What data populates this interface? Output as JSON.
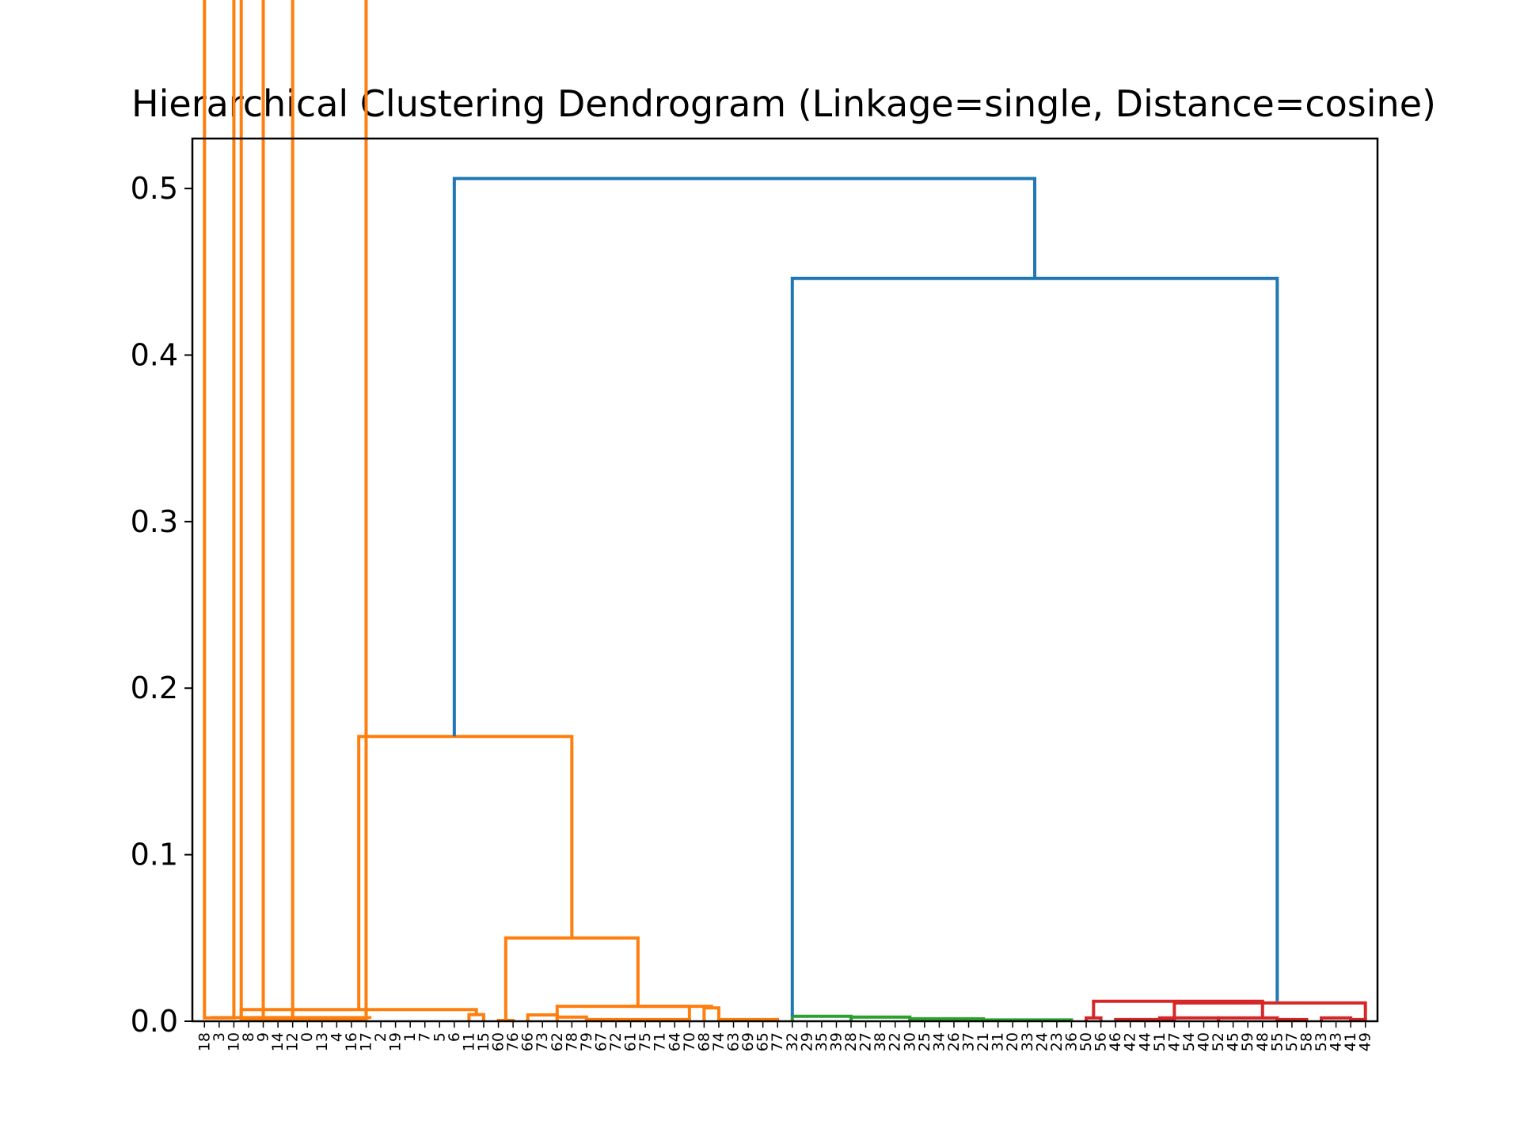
{
  "chart_data": {
    "type": "dendrogram",
    "title": "Hierarchical Clustering Dendrogram (Linkage=single, Distance=cosine)",
    "xlabel": "",
    "ylabel": "",
    "ylim": [
      0,
      0.53
    ],
    "yticks": [
      "0.0",
      "0.1",
      "0.2",
      "0.3",
      "0.4",
      "0.5"
    ],
    "ytick_values": [
      0,
      0.1,
      0.2,
      0.3,
      0.4,
      0.5
    ],
    "grid": false,
    "leaves": [
      "18",
      "3",
      "10",
      "8",
      "9",
      "14",
      "12",
      "0",
      "13",
      "4",
      "16",
      "17",
      "2",
      "19",
      "1",
      "7",
      "5",
      "6",
      "11",
      "15",
      "60",
      "76",
      "66",
      "73",
      "62",
      "78",
      "79",
      "67",
      "72",
      "61",
      "75",
      "71",
      "64",
      "70",
      "68",
      "74",
      "63",
      "69",
      "65",
      "77",
      "32",
      "29",
      "35",
      "39",
      "28",
      "27",
      "38",
      "22",
      "30",
      "25",
      "34",
      "26",
      "37",
      "21",
      "31",
      "20",
      "33",
      "24",
      "23",
      "36",
      "50",
      "56",
      "46",
      "42",
      "44",
      "51",
      "47",
      "54",
      "40",
      "52",
      "45",
      "59",
      "48",
      "55",
      "57",
      "58",
      "53",
      "43",
      "41",
      "49"
    ],
    "colors": {
      "above_threshold": "#1f77b4",
      "cluster1": "#ff7f0e",
      "cluster2": "#2ca02c",
      "cluster3": "#d62728"
    },
    "merges": [
      {
        "color": "#ff7f0e",
        "left": [
          0,
          1
        ],
        "right": [
          2,
          3
        ],
        "height": 0.002
      },
      {
        "color": "#ff7f0e",
        "left": [
          4,
          5
        ],
        "right": [
          6,
          17
        ],
        "height": 0.001
      },
      {
        "color": "#ff7f0e",
        "left": [
          2.5,
          3
        ],
        "right": [
          11,
          18
        ],
        "height": 0.0015
      },
      {
        "color": "#ff7f0e",
        "left": [
          0.5,
          0.002
        ],
        "right": [
          11.25,
          0.0015
        ],
        "height": 0.0022
      },
      {
        "color": "#ff7f0e",
        "left": [
          18,
          0
        ],
        "right": [
          19,
          0
        ],
        "height": 0.004
      },
      {
        "color": "#ff7f0e",
        "left": [
          2.5,
          0.0022
        ],
        "right": [
          18.5,
          0.004
        ],
        "height": 0.007
      },
      {
        "color": "#ff7f0e",
        "left": [
          20,
          0
        ],
        "right": [
          21,
          0
        ],
        "height": 0.0005
      },
      {
        "color": "#ff7f0e",
        "left": [
          22,
          0
        ],
        "right": [
          24,
          0
        ],
        "height": 0.0038
      },
      {
        "color": "#ff7f0e",
        "left": [
          24,
          0
        ],
        "right": [
          26,
          0
        ],
        "height": 0.0025
      },
      {
        "color": "#ff7f0e",
        "left": [
          26,
          0
        ],
        "right": [
          33,
          0
        ],
        "height": 0.001
      },
      {
        "color": "#ff7f0e",
        "left": [
          24,
          0.0025
        ],
        "right": [
          33,
          0
        ],
        "height": 0.009
      },
      {
        "color": "#ff7f0e",
        "left": [
          34,
          0
        ],
        "right": [
          35,
          0
        ],
        "height": 0.008
      },
      {
        "color": "#ff7f0e",
        "left": [
          35,
          0
        ],
        "right": [
          39,
          0
        ],
        "height": 0.001
      },
      {
        "color": "#ff7f0e",
        "left": [
          29,
          0.009
        ],
        "right": [
          34.5,
          0.008
        ],
        "height": 0.009
      },
      {
        "color": "#ff7f0e",
        "left": [
          20.5,
          0.0005
        ],
        "right": [
          29.5,
          0.009
        ],
        "height": 0.05
      },
      {
        "color": "#ff7f0e",
        "left": [
          10.5,
          0.007
        ],
        "right": [
          25.0,
          0.05
        ],
        "height": 0.171
      },
      {
        "color": "#2ca02c",
        "left": [
          40,
          0
        ],
        "right": [
          44,
          0
        ],
        "height": 0.003
      },
      {
        "color": "#2ca02c",
        "left": [
          44,
          0
        ],
        "right": [
          48,
          0
        ],
        "height": 0.0025
      },
      {
        "color": "#2ca02c",
        "left": [
          48,
          0
        ],
        "right": [
          53,
          0
        ],
        "height": 0.0015
      },
      {
        "color": "#2ca02c",
        "left": [
          53,
          0
        ],
        "right": [
          59,
          0
        ],
        "height": 0.0008
      },
      {
        "color": "#d62728",
        "left": [
          60,
          0
        ],
        "right": [
          61,
          0
        ],
        "height": 0.002
      },
      {
        "color": "#d62728",
        "left": [
          62,
          0
        ],
        "right": [
          66,
          0
        ],
        "height": 0.001
      },
      {
        "color": "#d62728",
        "left": [
          65,
          0
        ],
        "right": [
          69,
          0
        ],
        "height": 0.002
      },
      {
        "color": "#d62728",
        "left": [
          69,
          0
        ],
        "right": [
          73,
          0
        ],
        "height": 0.002
      },
      {
        "color": "#d62728",
        "left": [
          73,
          0
        ],
        "right": [
          75,
          0
        ],
        "height": 0.001
      },
      {
        "color": "#d62728",
        "left": [
          60.5,
          0.002
        ],
        "right": [
          72,
          0.002
        ],
        "height": 0.012
      },
      {
        "color": "#d62728",
        "left": [
          66,
          0
        ],
        "right": [
          79,
          0.0015
        ],
        "height": 0.011
      },
      {
        "color": "#d62728",
        "left": [
          76,
          0
        ],
        "right": [
          78,
          0
        ],
        "height": 0.002
      },
      {
        "color": "#d62728",
        "left": [
          78,
          0
        ],
        "right": [
          79,
          0
        ],
        "height": 0.001
      },
      {
        "color": "#1f77b4",
        "left": [
          40,
          0.003
        ],
        "right": [
          73,
          0.012
        ],
        "height": 0.446
      },
      {
        "color": "#1f77b4",
        "left": [
          17,
          0.171
        ],
        "right": [
          56.5,
          0.446
        ],
        "height": 0.506
      }
    ]
  }
}
